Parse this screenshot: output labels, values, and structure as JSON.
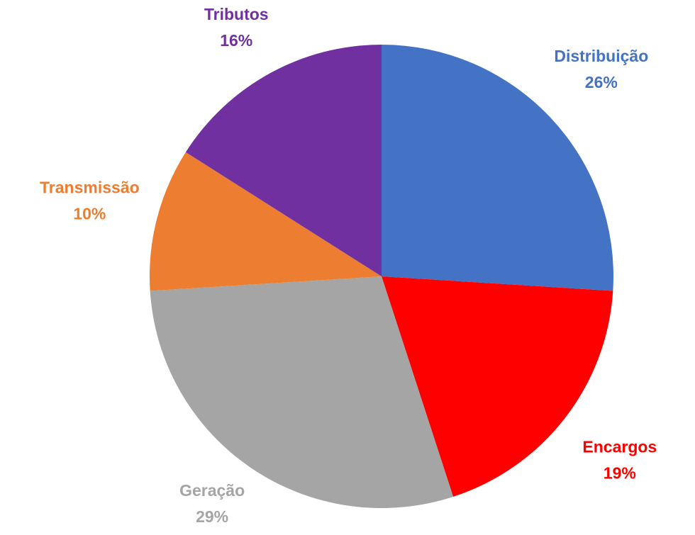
{
  "chart_data": {
    "type": "pie",
    "categories": [
      "Distribuição",
      "Encargos",
      "Geração",
      "Transmissão",
      "Tributos"
    ],
    "values": [
      26,
      19,
      29,
      10,
      16
    ],
    "value_labels": [
      "26%",
      "19%",
      "29%",
      "10%",
      "16%"
    ],
    "colors": [
      "#4472c4",
      "#ff0000",
      "#a5a5a5",
      "#ed7d31",
      "#7030a0"
    ]
  }
}
